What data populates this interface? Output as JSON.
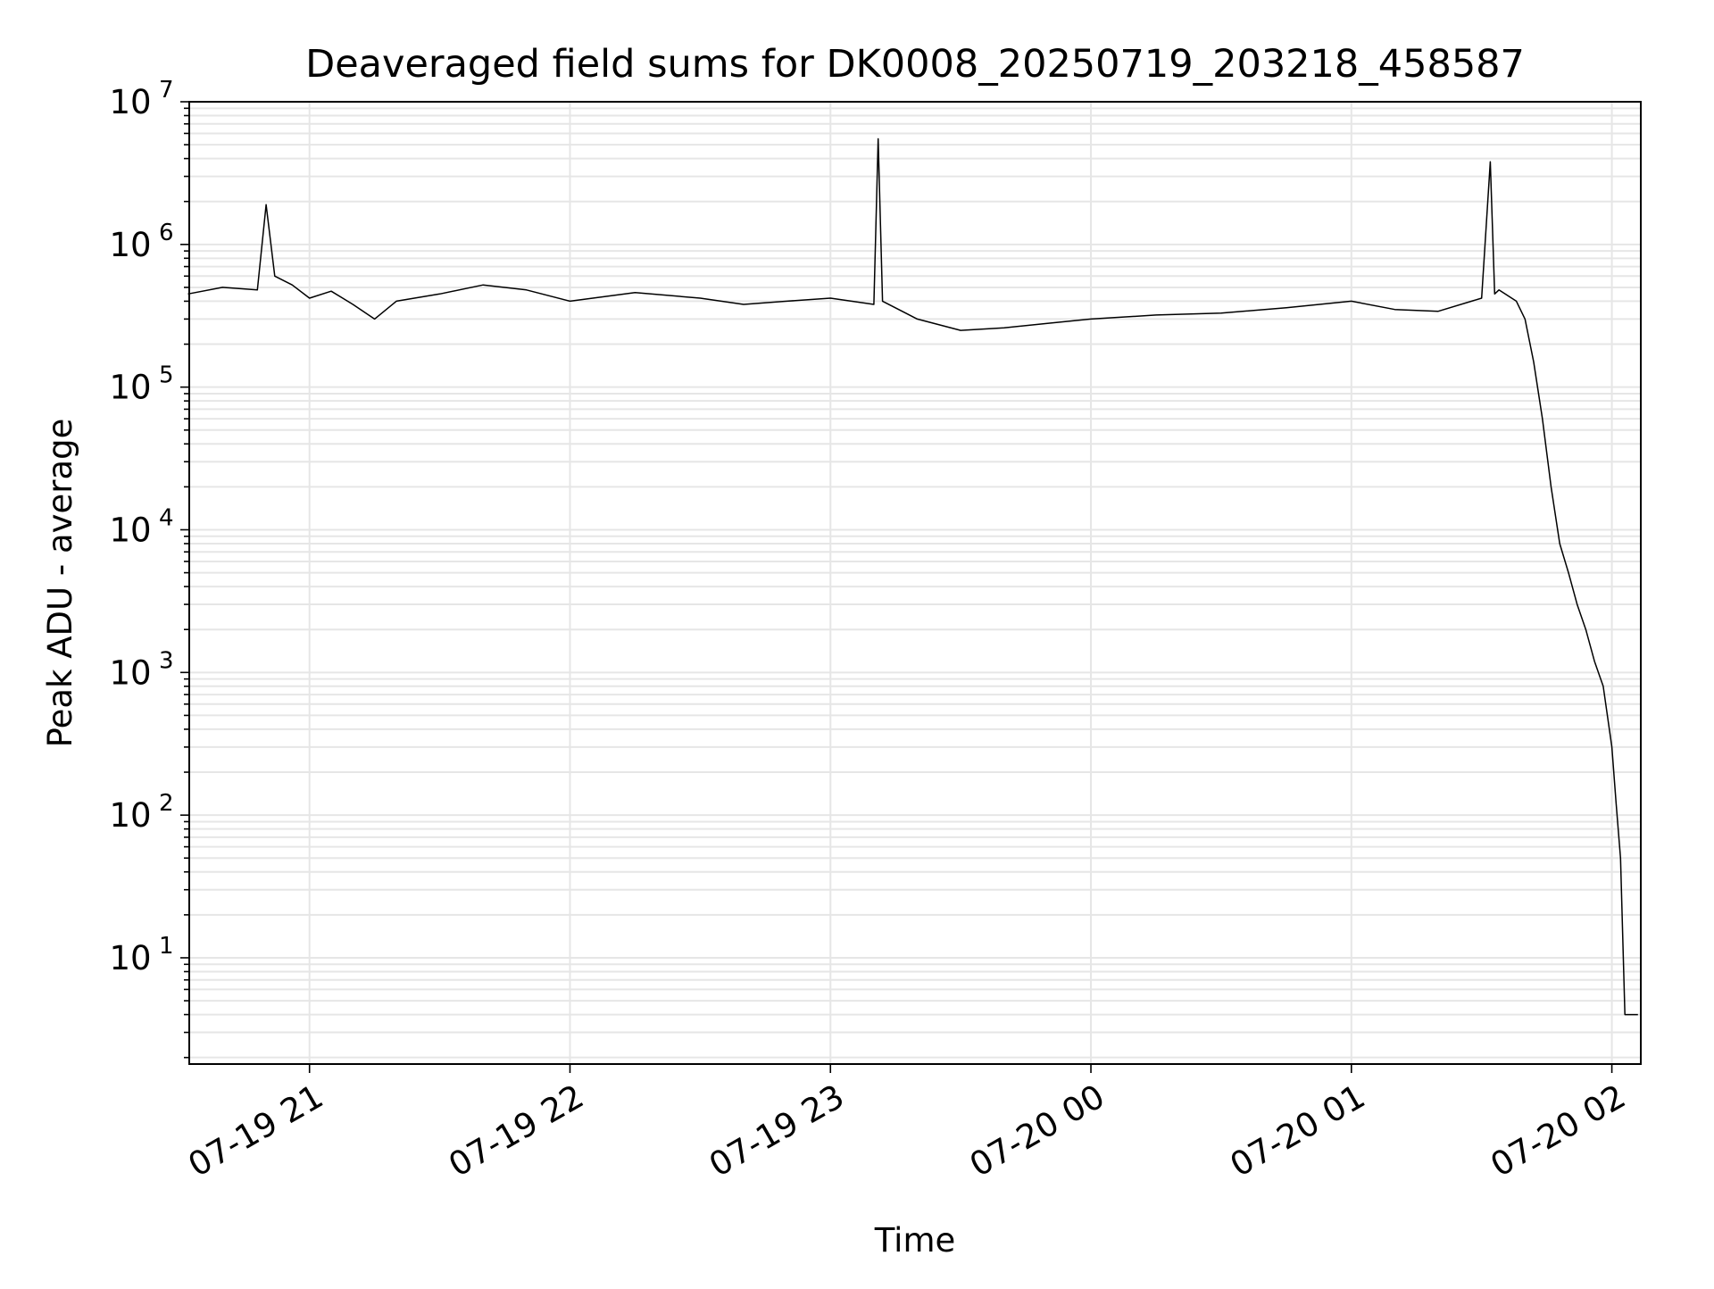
{
  "chart_data": {
    "type": "line",
    "title": "Deaveraged field sums for DK0008_20250719_203218_458587",
    "xlabel": "Time",
    "ylabel": "Peak ADU - average",
    "yscale": "log",
    "xlim": [
      "2025-07-19 20:32:18",
      "2025-07-20 02:06:40"
    ],
    "ylim": [
      1.8,
      10000000
    ],
    "grid": true,
    "legend": "none",
    "line_color": "#000000",
    "grid_color": "#e6e6e6",
    "x_ticks": [
      {
        "value": "2025-07-19 21:00",
        "label": "07-19 21"
      },
      {
        "value": "2025-07-19 22:00",
        "label": "07-19 22"
      },
      {
        "value": "2025-07-19 23:00",
        "label": "07-19 23"
      },
      {
        "value": "2025-07-20 00:00",
        "label": "07-20 00"
      },
      {
        "value": "2025-07-20 01:00",
        "label": "07-20 01"
      },
      {
        "value": "2025-07-20 02:00",
        "label": "07-20 02"
      }
    ],
    "y_ticks": [
      {
        "value": 10,
        "base": "10",
        "exp": "1"
      },
      {
        "value": 100,
        "base": "10",
        "exp": "2"
      },
      {
        "value": 1000,
        "base": "10",
        "exp": "3"
      },
      {
        "value": 10000,
        "base": "10",
        "exp": "4"
      },
      {
        "value": 100000,
        "base": "10",
        "exp": "5"
      },
      {
        "value": 1000000,
        "base": "10",
        "exp": "6"
      },
      {
        "value": 10000000,
        "base": "10",
        "exp": "7"
      }
    ],
    "series": [
      {
        "x": [
          "2025-07-19 20:32",
          "2025-07-19 20:40",
          "2025-07-19 20:48",
          "2025-07-19 20:50",
          "2025-07-19 20:52",
          "2025-07-19 20:56",
          "2025-07-19 21:00",
          "2025-07-19 21:05",
          "2025-07-19 21:10",
          "2025-07-19 21:15",
          "2025-07-19 21:20",
          "2025-07-19 21:30",
          "2025-07-19 21:40",
          "2025-07-19 21:50",
          "2025-07-19 22:00",
          "2025-07-19 22:15",
          "2025-07-19 22:30",
          "2025-07-19 22:40",
          "2025-07-19 22:50",
          "2025-07-19 23:00",
          "2025-07-19 23:10",
          "2025-07-19 23:11",
          "2025-07-19 23:12",
          "2025-07-19 23:20",
          "2025-07-19 23:30",
          "2025-07-19 23:40",
          "2025-07-19 23:50",
          "2025-07-20 00:00",
          "2025-07-20 00:15",
          "2025-07-20 00:30",
          "2025-07-20 00:45",
          "2025-07-20 01:00",
          "2025-07-20 01:10",
          "2025-07-20 01:20",
          "2025-07-20 01:30",
          "2025-07-20 01:32",
          "2025-07-20 01:33",
          "2025-07-20 01:34",
          "2025-07-20 01:38",
          "2025-07-20 01:40",
          "2025-07-20 01:42",
          "2025-07-20 01:44",
          "2025-07-20 01:46",
          "2025-07-20 01:48",
          "2025-07-20 01:50",
          "2025-07-20 01:52",
          "2025-07-20 01:54",
          "2025-07-20 01:56",
          "2025-07-20 01:58",
          "2025-07-20 02:00",
          "2025-07-20 02:01",
          "2025-07-20 02:02",
          "2025-07-20 02:03",
          "2025-07-20 02:04",
          "2025-07-20 02:06"
        ],
        "y": [
          450000,
          500000,
          480000,
          1900000,
          600000,
          520000,
          420000,
          470000,
          380000,
          300000,
          400000,
          450000,
          520000,
          480000,
          400000,
          460000,
          420000,
          380000,
          400000,
          420000,
          380000,
          5500000,
          400000,
          300000,
          250000,
          260000,
          280000,
          300000,
          320000,
          330000,
          360000,
          400000,
          350000,
          340000,
          420000,
          3800000,
          450000,
          480000,
          400000,
          300000,
          150000,
          60000,
          20000,
          8000,
          5000,
          3000,
          2000,
          1200,
          800,
          300,
          120,
          50,
          4,
          4,
          4
        ]
      }
    ]
  }
}
